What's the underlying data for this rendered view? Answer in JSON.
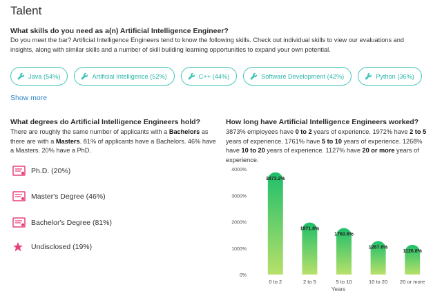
{
  "section": {
    "title": "Talent"
  },
  "skills": {
    "question": "What skills do you need as a(n) Artificial Intelligence Engineer?",
    "description": "Do you meet the bar? Artificial Intelligence Engineers tend to know the following skills. Check out individual skills to view our evaluations and insights, along with similar skills and a number of skill building learning opportunities to expand your own potential.",
    "chips": [
      {
        "label": "Java (54%)",
        "icon": "wrench-icon"
      },
      {
        "label": "Artificial Intelligence (52%)",
        "icon": "wrench-icon"
      },
      {
        "label": "C++ (44%)",
        "icon": "wrench-icon"
      },
      {
        "label": "Software Development (42%)",
        "icon": "wrench-icon"
      },
      {
        "label": "Python (36%)",
        "icon": "wrench-icon"
      }
    ],
    "show_more": "Show more"
  },
  "degrees": {
    "question": "What degrees do Artificial Intelligence Engineers hold?",
    "desc": {
      "p1": "There are roughly the same number of applicants with a ",
      "b1": "Bachelors",
      "p2": " as there are with a ",
      "b2": "Masters",
      "p3": ". 81% of applicants have a Bachelors. 46% have a Masters. 20% have a PhD."
    },
    "items": [
      {
        "label": "Ph.D. (20%)",
        "icon": "diploma-icon"
      },
      {
        "label": "Master's Degree (46%)",
        "icon": "diploma-icon"
      },
      {
        "label": "Bachelor's Degree (81%)",
        "icon": "diploma-icon"
      },
      {
        "label": "Undisclosed (19%)",
        "icon": "star-icon"
      }
    ],
    "accent": "#e8407a"
  },
  "experience": {
    "question": "How long have Artificial Intelligence Engineers worked?",
    "desc": {
      "t1": "3873% employees have ",
      "b1": "0 to 2",
      "t2": " years of experience. 1972% have ",
      "b2": "2 to 5",
      "t3": " years of experience. 1761% have ",
      "b3": "5 to 10",
      "t4": " years of experience. 1268% have ",
      "b4": "10 to 20",
      "t5": " years of experience. 1127% have ",
      "b5": "20 or more",
      "t6": " years of experience."
    }
  },
  "colors": {
    "accent": "#3fc5b8",
    "link": "#2f86c9",
    "bar_top": "#1fbf6a",
    "bar_bottom": "#b8e06a"
  },
  "chart_data": {
    "type": "bar",
    "categories": [
      "0 to 2",
      "2 to 5",
      "5 to 10",
      "10 to 20",
      "20 or more"
    ],
    "values": [
      3873.2,
      1971.8,
      1760.6,
      1267.6,
      1126.8
    ],
    "value_labels": [
      "3873.2%",
      "1971.8%",
      "1760.6%",
      "1267.6%",
      "1126.8%"
    ],
    "yticks": [
      0,
      1000,
      2000,
      3000,
      4000
    ],
    "ytick_labels": [
      "0%",
      "1000%",
      "2000%",
      "3000%",
      "4000%"
    ],
    "ylim": [
      0,
      4000
    ],
    "xlabel": "Years",
    "ylabel": "",
    "grid": false
  }
}
